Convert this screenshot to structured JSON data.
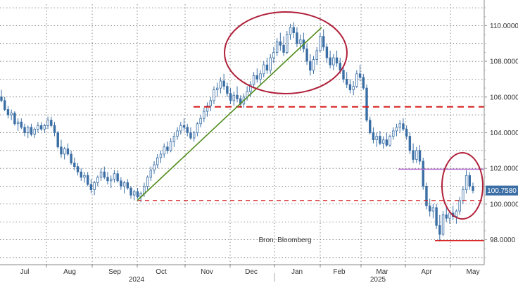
{
  "chart_data": {
    "type": "candlestick",
    "title": "",
    "xlabel": "",
    "ylabel": "",
    "source_note": "Bron: Bloomberg",
    "last_value": 100.758,
    "last_value_label": "100.7580",
    "ylim": [
      96.6,
      111.2
    ],
    "y_ticks": [
      98.0,
      100.0,
      102.0,
      104.0,
      106.0,
      108.0,
      110.0
    ],
    "y_tick_labels": [
      "98.0000",
      "100.0000",
      "102.0000",
      "104.0000",
      "106.0000",
      "108.0000",
      "110.0000"
    ],
    "x_month_labels": [
      "Jul",
      "Aug",
      "Sep",
      "Oct",
      "Nov",
      "Dec",
      "Jan",
      "Feb",
      "Mar",
      "Apr",
      "May"
    ],
    "x_year_labels": [
      "2024",
      "2025"
    ],
    "grid": true,
    "colors": {
      "candle": "#3a6ea5",
      "trendline": "#4d8a1a",
      "annotation_red": "#b0203a",
      "dashed_red": "#d81e1e",
      "resistance_purple": "#b86fd0",
      "label_box": "#3a6ea5"
    },
    "series": [
      {
        "values": [
          [
            106.0,
            106.4,
            105.7,
            105.8
          ],
          [
            105.8,
            106.0,
            105.2,
            105.3
          ],
          [
            105.3,
            105.5,
            104.8,
            105.0
          ],
          [
            105.0,
            105.3,
            104.7,
            105.1
          ],
          [
            105.1,
            105.2,
            104.4,
            104.5
          ],
          [
            104.5,
            104.8,
            104.1,
            104.6
          ],
          [
            104.6,
            104.8,
            104.2,
            104.3
          ],
          [
            104.3,
            104.5,
            103.8,
            104.0
          ],
          [
            104.0,
            104.4,
            103.7,
            104.3
          ],
          [
            104.3,
            104.5,
            103.8,
            103.9
          ],
          [
            103.9,
            104.3,
            103.7,
            104.2
          ],
          [
            104.2,
            104.6,
            104.0,
            104.4
          ],
          [
            104.4,
            104.6,
            104.1,
            104.2
          ],
          [
            104.2,
            104.5,
            104.0,
            104.4
          ],
          [
            104.4,
            104.9,
            104.2,
            104.7
          ],
          [
            104.7,
            104.9,
            104.3,
            104.4
          ],
          [
            104.4,
            104.6,
            103.8,
            104.0
          ],
          [
            104.0,
            104.1,
            103.1,
            103.2
          ],
          [
            103.2,
            103.6,
            102.6,
            102.8
          ],
          [
            102.8,
            103.2,
            102.5,
            103.1
          ],
          [
            103.1,
            103.4,
            102.7,
            102.8
          ],
          [
            102.8,
            103.0,
            102.2,
            102.3
          ],
          [
            102.3,
            102.6,
            101.9,
            102.1
          ],
          [
            102.1,
            102.3,
            101.6,
            101.8
          ],
          [
            101.8,
            102.0,
            101.3,
            101.5
          ],
          [
            101.5,
            101.8,
            101.2,
            101.6
          ],
          [
            101.6,
            101.8,
            101.0,
            101.1
          ],
          [
            101.1,
            101.4,
            100.6,
            100.8
          ],
          [
            100.8,
            101.3,
            100.5,
            101.2
          ],
          [
            101.2,
            101.6,
            101.0,
            101.5
          ],
          [
            101.5,
            102.0,
            101.3,
            101.8
          ],
          [
            101.8,
            102.1,
            101.4,
            101.5
          ],
          [
            101.5,
            101.8,
            101.1,
            101.3
          ],
          [
            101.3,
            101.6,
            100.9,
            101.4
          ],
          [
            101.4,
            101.9,
            101.2,
            101.7
          ],
          [
            101.7,
            101.9,
            101.2,
            101.3
          ],
          [
            101.3,
            101.5,
            100.8,
            101.0
          ],
          [
            101.0,
            101.3,
            100.6,
            101.2
          ],
          [
            101.2,
            101.4,
            100.8,
            100.9
          ],
          [
            100.9,
            101.0,
            100.3,
            100.5
          ],
          [
            100.5,
            100.8,
            100.2,
            100.7
          ],
          [
            100.7,
            100.9,
            100.3,
            100.4
          ],
          [
            100.4,
            100.7,
            100.1,
            100.6
          ],
          [
            100.6,
            101.2,
            100.4,
            101.0
          ],
          [
            101.0,
            101.6,
            100.8,
            101.5
          ],
          [
            101.5,
            102.1,
            101.3,
            101.9
          ],
          [
            101.9,
            102.4,
            101.7,
            102.2
          ],
          [
            102.2,
            102.8,
            102.0,
            102.6
          ],
          [
            102.6,
            103.0,
            102.3,
            102.8
          ],
          [
            102.8,
            103.4,
            102.6,
            103.2
          ],
          [
            103.2,
            103.5,
            102.8,
            103.0
          ],
          [
            103.0,
            103.7,
            102.9,
            103.5
          ],
          [
            103.5,
            104.0,
            103.2,
            103.8
          ],
          [
            103.8,
            104.3,
            103.6,
            104.1
          ],
          [
            104.1,
            104.6,
            103.9,
            104.4
          ],
          [
            104.4,
            104.8,
            104.1,
            104.3
          ],
          [
            104.3,
            104.5,
            103.8,
            104.0
          ],
          [
            104.0,
            104.3,
            103.6,
            103.7
          ],
          [
            103.7,
            104.1,
            103.5,
            104.0
          ],
          [
            104.0,
            104.6,
            103.8,
            104.5
          ],
          [
            104.5,
            105.0,
            104.3,
            104.8
          ],
          [
            104.8,
            105.4,
            104.6,
            105.2
          ],
          [
            105.2,
            105.7,
            104.9,
            105.5
          ],
          [
            105.5,
            106.0,
            105.2,
            105.8
          ],
          [
            105.8,
            106.6,
            105.6,
            106.4
          ],
          [
            106.4,
            106.8,
            106.0,
            106.5
          ],
          [
            106.5,
            107.1,
            106.2,
            106.9
          ],
          [
            106.9,
            107.3,
            106.4,
            106.6
          ],
          [
            106.6,
            106.8,
            106.0,
            106.2
          ],
          [
            106.2,
            106.5,
            105.6,
            105.8
          ],
          [
            105.8,
            106.3,
            105.5,
            106.1
          ],
          [
            106.1,
            106.6,
            105.7,
            105.9
          ],
          [
            105.9,
            106.1,
            105.4,
            105.6
          ],
          [
            105.6,
            106.2,
            105.4,
            106.0
          ],
          [
            106.0,
            106.6,
            105.8,
            106.3
          ],
          [
            106.3,
            106.9,
            106.0,
            106.7
          ],
          [
            106.7,
            107.4,
            106.5,
            107.2
          ],
          [
            107.2,
            107.6,
            106.8,
            107.0
          ],
          [
            107.0,
            107.5,
            106.7,
            107.3
          ],
          [
            107.3,
            108.0,
            107.1,
            107.8
          ],
          [
            107.8,
            108.2,
            107.3,
            107.5
          ],
          [
            107.5,
            108.4,
            107.3,
            108.2
          ],
          [
            108.2,
            108.8,
            107.9,
            108.5
          ],
          [
            108.5,
            109.3,
            108.3,
            109.1
          ],
          [
            109.1,
            109.6,
            108.6,
            108.9
          ],
          [
            108.9,
            109.4,
            108.3,
            108.5
          ],
          [
            108.5,
            109.7,
            108.4,
            109.5
          ],
          [
            109.5,
            110.1,
            109.2,
            109.9
          ],
          [
            109.9,
            110.2,
            109.3,
            109.6
          ],
          [
            109.6,
            109.9,
            108.8,
            109.0
          ],
          [
            109.0,
            109.5,
            108.6,
            109.2
          ],
          [
            109.2,
            109.6,
            108.5,
            108.7
          ],
          [
            108.7,
            109.0,
            107.8,
            108.0
          ],
          [
            108.0,
            108.4,
            107.2,
            107.5
          ],
          [
            107.5,
            108.3,
            107.3,
            108.1
          ],
          [
            108.1,
            108.8,
            107.8,
            108.6
          ],
          [
            108.6,
            109.6,
            108.5,
            109.4
          ],
          [
            109.4,
            109.8,
            108.6,
            108.8
          ],
          [
            108.8,
            109.0,
            107.9,
            108.2
          ],
          [
            108.2,
            108.6,
            107.6,
            107.8
          ],
          [
            107.8,
            108.4,
            107.5,
            108.2
          ],
          [
            108.2,
            108.6,
            107.7,
            107.9
          ],
          [
            107.9,
            108.2,
            107.3,
            107.5
          ],
          [
            107.5,
            107.8,
            106.8,
            107.0
          ],
          [
            107.0,
            107.4,
            106.5,
            106.7
          ],
          [
            106.7,
            107.0,
            106.2,
            106.4
          ],
          [
            106.4,
            106.9,
            106.1,
            106.6
          ],
          [
            106.6,
            107.5,
            106.5,
            107.3
          ],
          [
            107.3,
            107.8,
            106.9,
            107.1
          ],
          [
            107.1,
            107.3,
            106.4,
            106.5
          ],
          [
            106.5,
            106.7,
            104.6,
            104.7
          ],
          [
            104.7,
            104.9,
            103.9,
            104.0
          ],
          [
            104.0,
            104.3,
            103.4,
            103.6
          ],
          [
            103.6,
            104.0,
            103.2,
            103.8
          ],
          [
            103.8,
            104.1,
            103.3,
            103.4
          ],
          [
            103.4,
            103.8,
            103.1,
            103.6
          ],
          [
            103.6,
            104.0,
            103.2,
            103.3
          ],
          [
            103.3,
            103.9,
            103.2,
            103.8
          ],
          [
            103.8,
            104.3,
            103.6,
            104.1
          ],
          [
            104.1,
            104.5,
            103.8,
            104.3
          ],
          [
            104.3,
            104.7,
            104.0,
            104.5
          ],
          [
            104.5,
            104.8,
            104.1,
            104.2
          ],
          [
            104.2,
            104.4,
            103.6,
            103.8
          ],
          [
            103.8,
            104.0,
            102.8,
            103.0
          ],
          [
            103.0,
            103.4,
            102.3,
            102.5
          ],
          [
            102.5,
            103.2,
            102.3,
            103.0
          ],
          [
            103.0,
            103.3,
            102.2,
            102.4
          ],
          [
            102.4,
            102.6,
            100.8,
            101.0
          ],
          [
            101.0,
            101.2,
            99.7,
            99.9
          ],
          [
            99.9,
            100.3,
            99.3,
            99.6
          ],
          [
            99.6,
            100.0,
            99.2,
            99.8
          ],
          [
            99.8,
            100.0,
            98.6,
            98.8
          ],
          [
            98.8,
            99.4,
            97.9,
            98.3
          ],
          [
            98.3,
            99.6,
            98.2,
            99.4
          ],
          [
            99.4,
            99.9,
            99.0,
            99.2
          ],
          [
            99.2,
            99.6,
            98.9,
            99.5
          ],
          [
            99.5,
            99.9,
            99.1,
            99.3
          ],
          [
            99.3,
            99.7,
            98.9,
            99.6
          ],
          [
            99.6,
            100.4,
            99.4,
            100.2
          ],
          [
            100.2,
            101.0,
            100.0,
            100.8
          ],
          [
            100.8,
            101.9,
            100.6,
            101.6
          ],
          [
            101.6,
            101.8,
            100.8,
            101.0
          ],
          [
            101.0,
            101.2,
            100.6,
            100.758
          ]
        ]
      }
    ],
    "annotations": {
      "resistance_dashed": 105.45,
      "support_dashed": 100.2,
      "resistance_solid": 101.95,
      "low_line": 97.95
    }
  }
}
